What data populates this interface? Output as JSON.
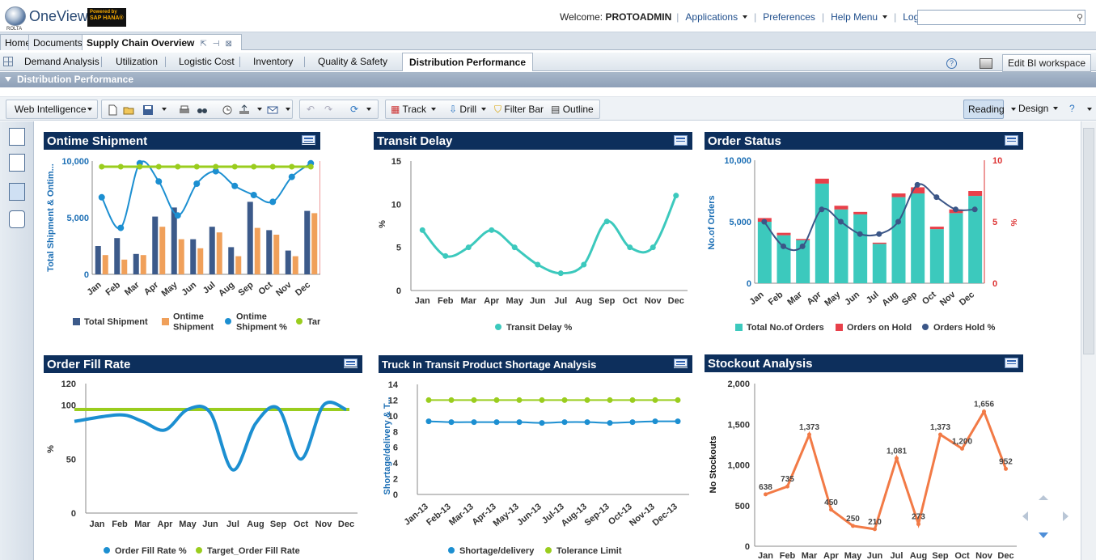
{
  "header": {
    "logo_text": "OneView",
    "logo_sup": "®",
    "logo_sub": "ROLTA",
    "powered_line1": "Powered by",
    "powered_line2": "SAP HANA®",
    "welcome_prefix": "Welcome:",
    "username": "PROTOADMIN",
    "nav": [
      "Applications",
      "Preferences",
      "Help Menu",
      "Log Off"
    ],
    "search_placeholder": ""
  },
  "doc_tabs": {
    "home": "Home",
    "documents": "Documents",
    "active": "Supply Chain Overview"
  },
  "report_tabs": [
    "Demand Analysis",
    "Utilization",
    "Logistic Cost",
    "Inventory",
    "Quality & Safety",
    "Distribution Performance"
  ],
  "edit_bi": "Edit BI workspace",
  "section_title": "Distribution Performance",
  "toolbar": {
    "web_intel": "Web Intelligence",
    "track": "Track",
    "drill": "Drill",
    "filter_bar": "Filter Bar",
    "outline": "Outline",
    "reading": "Reading",
    "design": "Design"
  },
  "colors": {
    "navy": "#0d2f5c",
    "bar_blue": "#3c5a8a",
    "orange": "#f0a05a",
    "cyan": "#1c8fd1",
    "green": "#9acd1e",
    "teal": "#3cc9bd",
    "red": "#e8404a",
    "dark_navy": "#3b5687",
    "stock_orange": "#f27a46"
  },
  "months": [
    "Jan",
    "Feb",
    "Mar",
    "Apr",
    "May",
    "Jun",
    "Jul",
    "Aug",
    "Sep",
    "Oct",
    "Nov",
    "Dec"
  ],
  "chart_data": [
    {
      "title": "Ontime Shipment",
      "type": "bar",
      "ylabel": "Total Shipment & Ontim...",
      "y2label": "%",
      "ylim": [
        0,
        10000
      ],
      "y2lim": [
        0,
        100
      ],
      "yticks": [
        "0",
        "5,000",
        "10,000"
      ],
      "y2ticks": [
        "0",
        "50",
        "100"
      ],
      "series": [
        {
          "name": "Total Shipment",
          "values": [
            2500,
            3200,
            1800,
            5100,
            5900,
            3100,
            4200,
            2400,
            6400,
            3900,
            2100,
            5600
          ]
        },
        {
          "name": "Ontime Shipment",
          "values": [
            1700,
            1300,
            1700,
            4200,
            3100,
            2300,
            3700,
            1600,
            4100,
            3500,
            1600,
            5400
          ]
        },
        {
          "name": "Ontime Shipment %",
          "values": [
            68,
            41,
            98,
            82,
            52,
            80,
            91,
            78,
            70,
            64,
            86,
            98
          ]
        },
        {
          "name": "Target",
          "values": [
            95,
            95,
            95,
            95,
            95,
            95,
            95,
            95,
            95,
            95,
            95,
            95
          ]
        }
      ],
      "legend": [
        "Total Shipment",
        "Ontime\nShipment",
        "Ontime\nShipment %",
        "Target"
      ]
    },
    {
      "title": "Transit Delay",
      "type": "line",
      "ylabel": "%",
      "ylim": [
        0,
        15
      ],
      "yticks": [
        "0",
        "5",
        "10",
        "15"
      ],
      "series": [
        {
          "name": "Transit Delay %",
          "values": [
            7,
            4,
            5,
            7,
            5,
            3,
            2,
            3,
            8,
            5,
            5,
            11
          ]
        }
      ]
    },
    {
      "title": "Order Status",
      "type": "bar",
      "ylabel": "No.of Orders",
      "y2label": "%",
      "ylim": [
        0,
        10000
      ],
      "y2lim": [
        0,
        10
      ],
      "yticks": [
        "0",
        "5,000",
        "10,000"
      ],
      "y2ticks": [
        "0",
        "5",
        "10"
      ],
      "series": [
        {
          "name": "Total No.of Orders",
          "values": [
            5000,
            3900,
            3500,
            8100,
            6000,
            5600,
            3200,
            7000,
            7300,
            4400,
            5700,
            7100
          ]
        },
        {
          "name": "Orders on Hold",
          "values": [
            300,
            200,
            100,
            400,
            300,
            200,
            100,
            300,
            500,
            200,
            300,
            400
          ]
        },
        {
          "name": "Orders Hold %",
          "values": [
            5,
            3,
            3,
            6,
            5,
            4,
            4,
            5,
            8,
            7,
            6,
            6
          ]
        }
      ]
    },
    {
      "title": "Order Fill Rate",
      "type": "line",
      "ylabel": "%",
      "ylim": [
        0,
        120
      ],
      "yticks": [
        "0",
        "50",
        "100",
        "120"
      ],
      "series": [
        {
          "name": "Order Fill Rate %",
          "values": [
            85,
            91,
            85,
            77,
            96,
            93,
            40,
            83,
            97,
            50,
            100,
            96
          ]
        },
        {
          "name": "Target_Order Fill Rate",
          "values": [
            96,
            96,
            96,
            96,
            96,
            96,
            96,
            96,
            96,
            96,
            96,
            96
          ]
        }
      ]
    },
    {
      "title": "Truck In Transit Product Shortage Analysis",
      "type": "line",
      "ylabel": "Shortage/delivery & T...",
      "ylim": [
        0,
        14
      ],
      "yticks": [
        "0",
        "2",
        "4",
        "6",
        "8",
        "10",
        "12",
        "14"
      ],
      "categories": [
        "Jan-13",
        "Feb-13",
        "Mar-13",
        "Apr-13",
        "May-13",
        "Jun-13",
        "Jul-13",
        "Aug-13",
        "Sep-13",
        "Oct-13",
        "Nov-13",
        "Dec-13"
      ],
      "series": [
        {
          "name": "Shortage/delivery",
          "values": [
            9.3,
            9.2,
            9.2,
            9.2,
            9.2,
            9.1,
            9.2,
            9.2,
            9.1,
            9.2,
            9.3,
            9.3
          ]
        },
        {
          "name": "Tolerance Limit",
          "values": [
            12,
            12,
            12,
            12,
            12,
            12,
            12,
            12,
            12,
            12,
            12,
            12
          ]
        }
      ]
    },
    {
      "title": "Stockout Analysis",
      "type": "line",
      "ylabel": "No Stockouts",
      "ylim": [
        0,
        2000
      ],
      "yticks": [
        "0",
        "500",
        "1,000",
        "1,500",
        "2,000"
      ],
      "series": [
        {
          "name": "Stockouts",
          "values": [
            638,
            735,
            1373,
            450,
            250,
            210,
            1081,
            273,
            1373,
            1200,
            1656,
            952
          ]
        }
      ],
      "data_labels": [
        "638",
        "735",
        "1,373",
        "450",
        "250",
        "210",
        "1,081",
        "273",
        "1,373",
        "1,200",
        "1,656",
        "952"
      ]
    }
  ]
}
